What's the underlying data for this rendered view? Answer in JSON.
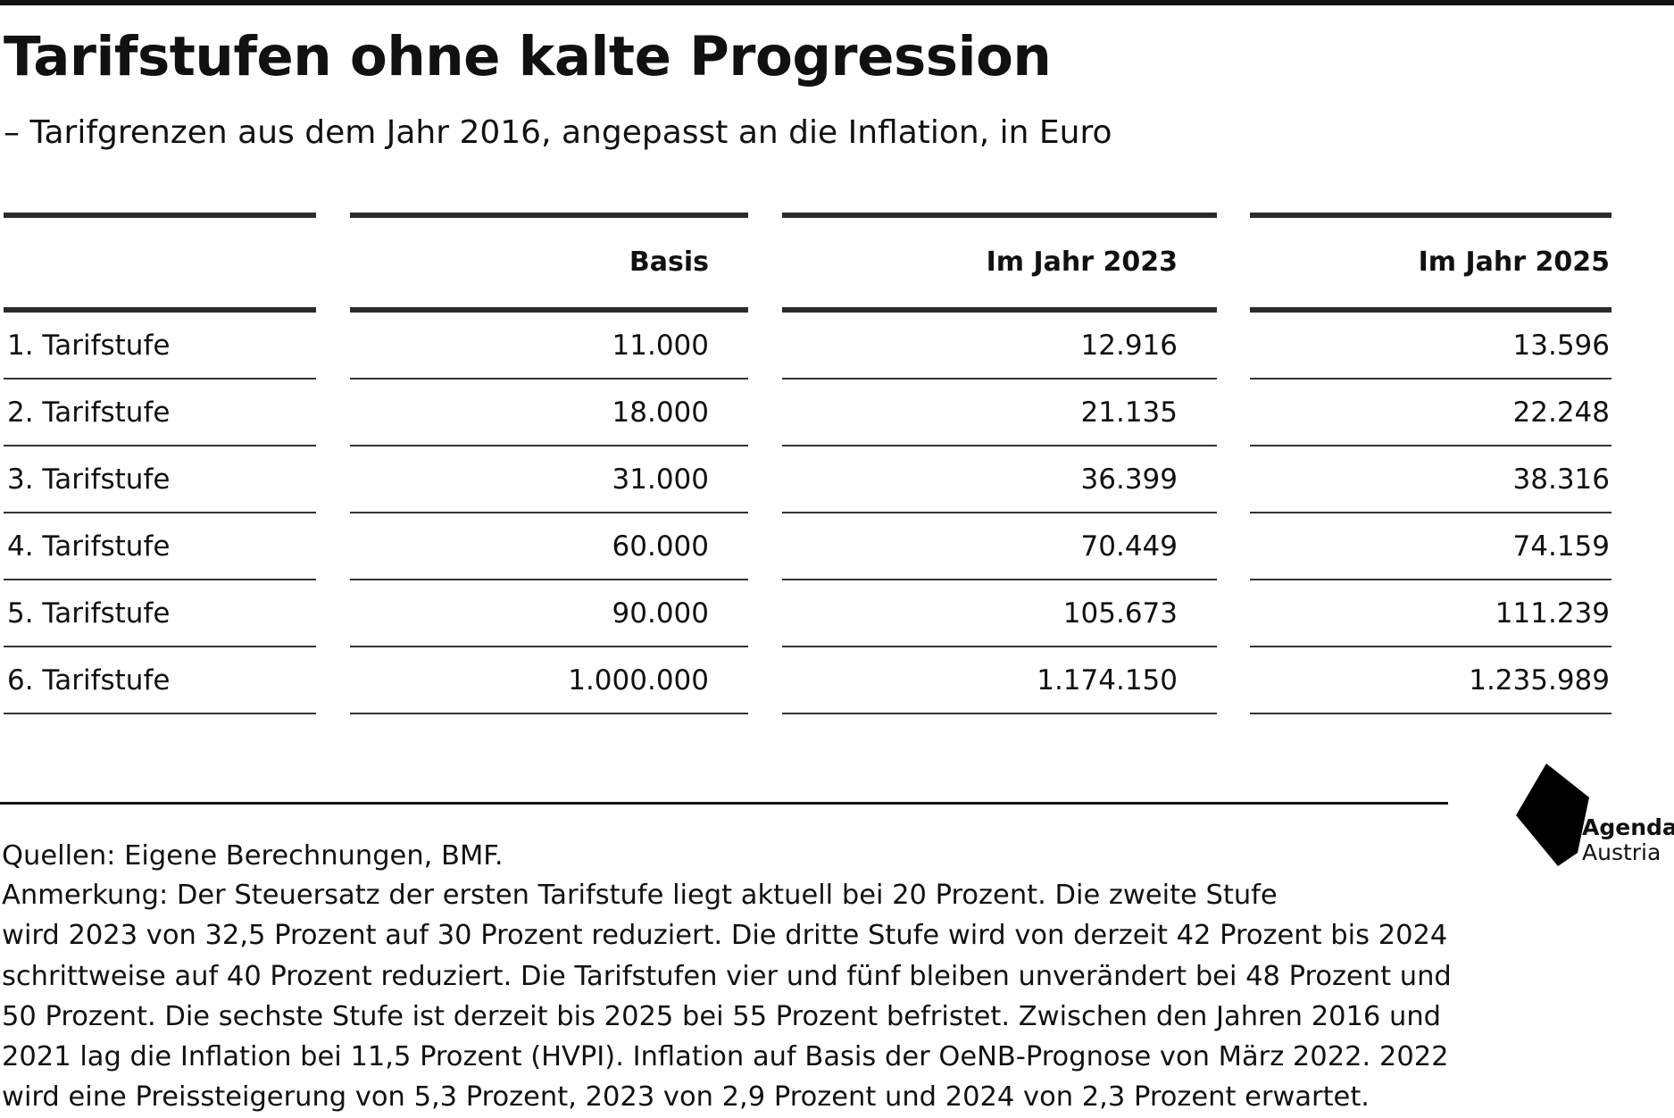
{
  "chart_data": {
    "type": "table",
    "title": "Tarifstufen ohne kalte Progression",
    "subtitle": "– Tarifgrenzen aus dem Jahr 2016, angepasst an die Inflation, in Euro",
    "columns": [
      "",
      "Basis",
      "Im Jahr 2023",
      "Im Jahr 2025"
    ],
    "rows": [
      {
        "label": "1. Tarifstufe",
        "values": [
          "11.000",
          "12.916",
          "13.596"
        ]
      },
      {
        "label": "2. Tarifstufe",
        "values": [
          "18.000",
          "21.135",
          "22.248"
        ]
      },
      {
        "label": "3. Tarifstufe",
        "values": [
          "31.000",
          "36.399",
          "38.316"
        ]
      },
      {
        "label": "4. Tarifstufe",
        "values": [
          "60.000",
          "70.449",
          "74.159"
        ]
      },
      {
        "label": "5. Tarifstufe",
        "values": [
          "90.000",
          "105.673",
          "111.239"
        ]
      },
      {
        "label": "6. Tarifstufe",
        "values": [
          "1.000.000",
          "1.174.150",
          "1.235.989"
        ]
      }
    ]
  },
  "footer": {
    "sources": "Quellen: Eigene Berechnungen, BMF.",
    "note_lines": [
      "Anmerkung: Der Steuersatz der ersten Tarifstufe liegt aktuell bei 20 Prozent. Die zweite Stufe",
      "wird 2023 von 32,5 Prozent auf 30 Prozent reduziert. Die dritte Stufe wird von derzeit 42 Prozent bis 2024",
      "schrittweise auf 40 Prozent reduziert. Die Tarifstufen vier und fünf bleiben unverändert bei 48 Prozent und",
      "50 Prozent. Die sechste Stufe ist derzeit bis 2025 bei 55 Prozent befristet. Zwischen den Jahren 2016 und",
      "2021 lag die Inflation bei 11,5 Prozent (HVPI). Inflation auf Basis der OeNB-Prognose von März 2022. 2022",
      "wird eine Preissteigerung von 5,3 Prozent, 2023 von 2,9 Prozent und 2024 von 2,3 Prozent erwartet."
    ]
  },
  "logo": {
    "line1": "Agenda",
    "line2": "Austria",
    "icon": "agenda-austria-logo-icon",
    "color": "#000000"
  }
}
